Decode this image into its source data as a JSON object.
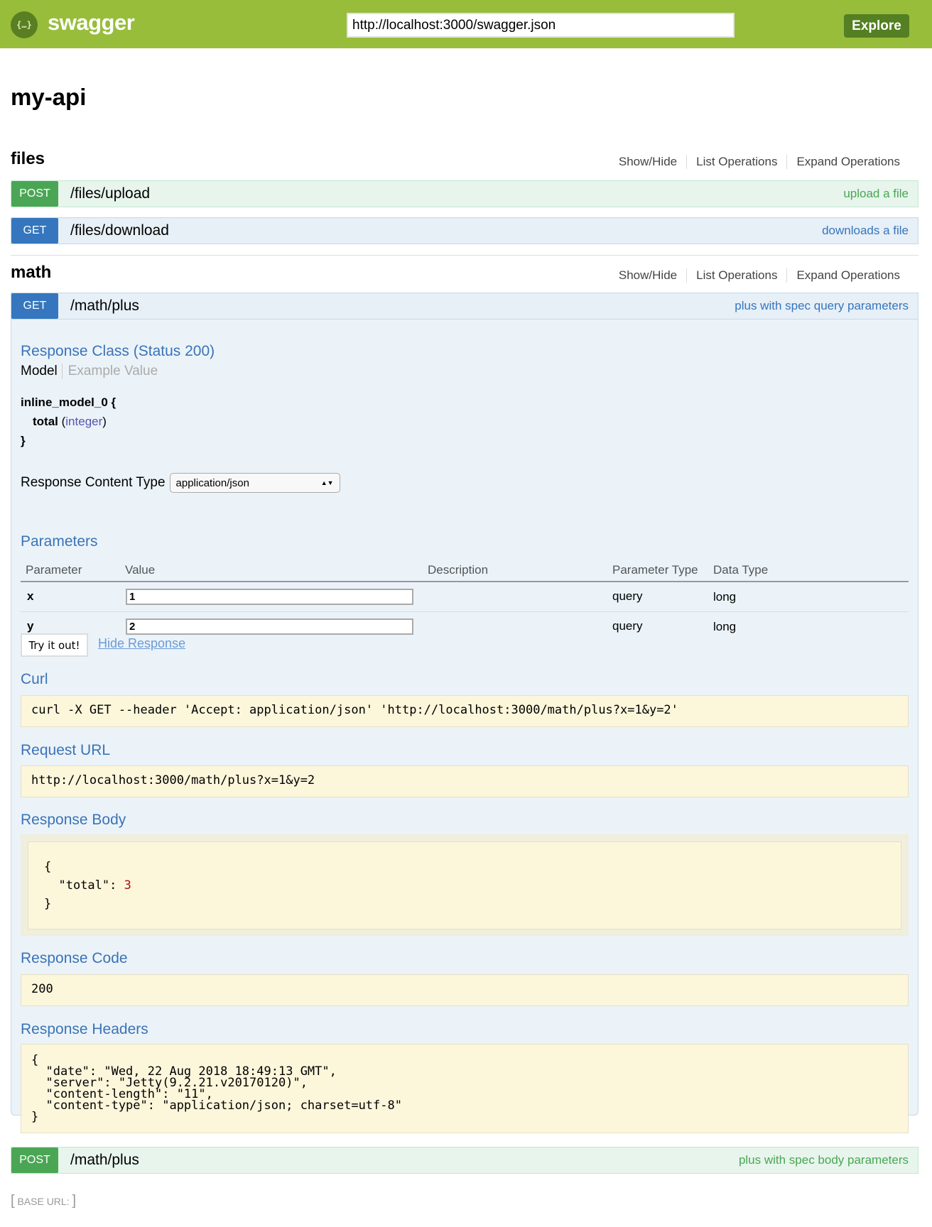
{
  "header": {
    "brand": "swagger",
    "logo_text": "{…}",
    "url_value": "http://localhost:3000/swagger.json",
    "explore_label": "Explore",
    "color": "#97bd3b"
  },
  "title": "my-api",
  "section_links": {
    "show_hide": "Show/Hide",
    "list": "List Operations",
    "expand": "Expand Operations"
  },
  "sections": [
    {
      "name": "files",
      "operations": [
        {
          "method": "POST",
          "path": "/files/upload",
          "summary": "upload a file"
        },
        {
          "method": "GET",
          "path": "/files/download",
          "summary": "downloads a file"
        }
      ]
    },
    {
      "name": "math",
      "operations": [
        {
          "method": "GET",
          "path": "/math/plus",
          "summary": "plus with spec query parameters"
        },
        {
          "method": "POST",
          "path": "/math/plus",
          "summary": "plus with spec body parameters"
        }
      ]
    }
  ],
  "expanded": {
    "response_class": "Response Class (Status 200)",
    "model_tab": "Model",
    "example_tab": "Example Value",
    "model_name": "inline_model_0 {",
    "prop_name": "total",
    "prop_type": "integer",
    "close": "}",
    "content_type_label": "Response Content Type",
    "content_type_value": "application/json",
    "parameters_heading": "Parameters",
    "param_headers": [
      "Parameter",
      "Value",
      "Description",
      "Parameter Type",
      "Data Type"
    ],
    "params": [
      {
        "name": "x",
        "value": "1",
        "type": "query",
        "data_type": "long"
      },
      {
        "name": "y",
        "value": "2",
        "type": "query",
        "data_type": "long"
      }
    ],
    "try_label": "Try it out!",
    "hide_label": "Hide Response",
    "curl_heading": "Curl",
    "curl": "curl -X GET --header 'Accept: application/json' 'http://localhost:3000/math/plus?x=1&y=2'",
    "request_url_heading": "Request URL",
    "request_url": "http://localhost:3000/math/plus?x=1&y=2",
    "response_body_heading": "Response Body",
    "body_open": "{",
    "body_key": "\"total\": ",
    "body_value": "3",
    "body_close": "}",
    "response_code_heading": "Response Code",
    "response_code": "200",
    "response_headers_heading": "Response Headers",
    "response_headers": "{\n  \"date\": \"Wed, 22 Aug 2018 18:49:13 GMT\",\n  \"server\": \"Jetty(9.2.21.v20170120)\",\n  \"content-length\": \"11\",\n  \"content-type\": \"application/json; charset=utf-8\"\n}"
  },
  "footer": {
    "base_url_label": "BASE URL",
    "base_url_value": ""
  }
}
